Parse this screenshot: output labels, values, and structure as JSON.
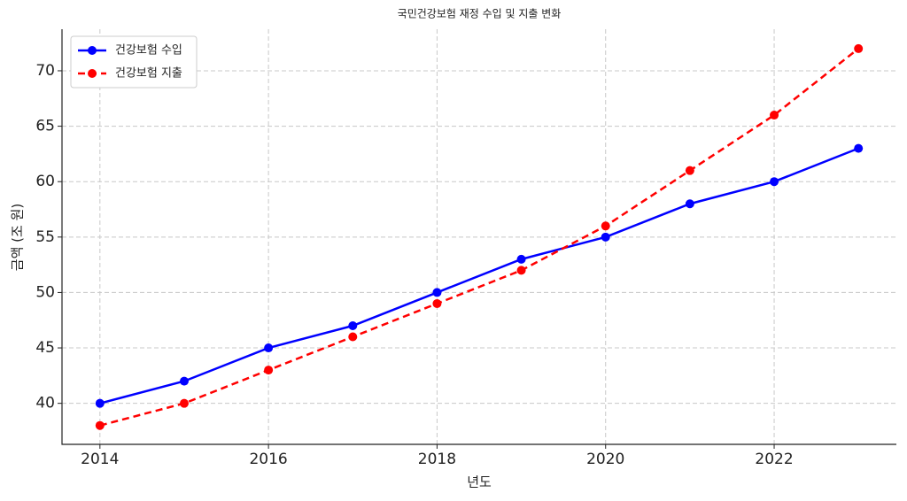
{
  "chart_data": {
    "type": "line",
    "title": "국민건강보험 재정 수입 및 지출 변화",
    "x_label": "년도",
    "y_label": "금액 (조 원)",
    "x": [
      2014,
      2015,
      2016,
      2017,
      2018,
      2019,
      2020,
      2021,
      2022,
      2023
    ],
    "series": [
      {
        "name": "건강보험 수입",
        "color": "#0000ff",
        "dash": false,
        "values": [
          40,
          42,
          45,
          47,
          50,
          53,
          55,
          58,
          60,
          63
        ]
      },
      {
        "name": "건강보험 지출",
        "color": "#ff0000",
        "dash": true,
        "values": [
          38,
          40,
          43,
          46,
          49,
          52,
          56,
          61,
          66,
          72
        ]
      }
    ],
    "xlim": [
      2013.55,
      2023.45
    ],
    "ylim": [
      36.3,
      73.75
    ],
    "xticks": [
      2014,
      2016,
      2018,
      2020,
      2022
    ],
    "yticks": [
      40,
      45,
      50,
      55,
      60,
      65,
      70
    ],
    "grid": true,
    "legend": "upper-left"
  }
}
